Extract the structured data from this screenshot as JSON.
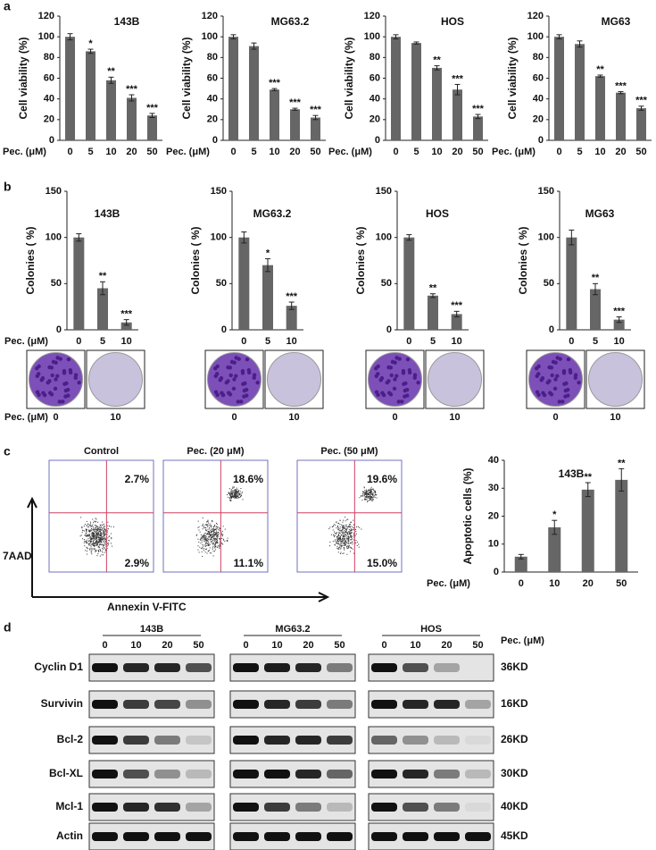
{
  "panels": [
    "a",
    "b",
    "c",
    "d"
  ],
  "chart_data": [
    {
      "type": "bar",
      "title": "143B",
      "ylabel": "Cell viability (%)",
      "xlabel": "Pec. (μM)",
      "categories": [
        "0",
        "5",
        "10",
        "20",
        "50"
      ],
      "values": [
        100,
        86,
        58,
        41,
        24
      ],
      "errors": [
        3,
        2,
        3,
        3,
        2
      ],
      "significance": [
        null,
        "*",
        "**",
        "***",
        "***"
      ],
      "color": "#666666",
      "ylim": [
        0,
        120
      ],
      "yticks": [
        0,
        20,
        40,
        60,
        80,
        100,
        120
      ]
    },
    {
      "type": "bar",
      "title": "MG63.2",
      "ylabel": "Cell viability (%)",
      "xlabel": "Pec. (μM)",
      "categories": [
        "0",
        "5",
        "10",
        "20",
        "50"
      ],
      "values": [
        100,
        91,
        49,
        30,
        22
      ],
      "errors": [
        2,
        3,
        1,
        1,
        2
      ],
      "significance": [
        null,
        null,
        "***",
        "***",
        "***"
      ],
      "color": "#666666",
      "ylim": [
        0,
        120
      ],
      "yticks": [
        0,
        20,
        40,
        60,
        80,
        100,
        120
      ]
    },
    {
      "type": "bar",
      "title": "HOS",
      "ylabel": "Cell viability (%)",
      "xlabel": "Pec. (μM)",
      "categories": [
        "0",
        "5",
        "10",
        "20",
        "50"
      ],
      "values": [
        100,
        94,
        70,
        49,
        23
      ],
      "errors": [
        2,
        1,
        2,
        5,
        2
      ],
      "significance": [
        null,
        null,
        "**",
        "***",
        "***"
      ],
      "color": "#666666",
      "ylim": [
        0,
        120
      ],
      "yticks": [
        0,
        20,
        40,
        60,
        80,
        100,
        120
      ]
    },
    {
      "type": "bar",
      "title": "MG63",
      "ylabel": "Cell viability (%)",
      "xlabel": "Pec. (μM)",
      "categories": [
        "0",
        "5",
        "10",
        "20",
        "50"
      ],
      "values": [
        100,
        93,
        62,
        46,
        31
      ],
      "errors": [
        2,
        3,
        1,
        1,
        2
      ],
      "significance": [
        null,
        null,
        "**",
        "***",
        "***"
      ],
      "color": "#666666",
      "ylim": [
        0,
        120
      ],
      "yticks": [
        0,
        20,
        40,
        60,
        80,
        100,
        120
      ]
    },
    {
      "type": "bar",
      "title": "143B",
      "ylabel": "Colonies ( %)",
      "xlabel": "Pec. (μM)",
      "categories": [
        "0",
        "5",
        "10"
      ],
      "values": [
        100,
        45,
        8
      ],
      "errors": [
        4,
        7,
        3
      ],
      "significance": [
        null,
        "**",
        "***"
      ],
      "color": "#666666",
      "ylim": [
        0,
        150
      ],
      "yticks": [
        0,
        50,
        100,
        150
      ]
    },
    {
      "type": "bar",
      "title": "MG63.2",
      "ylabel": "Colonies ( %)",
      "categories": [
        "0",
        "5",
        "10"
      ],
      "values": [
        100,
        70,
        26
      ],
      "errors": [
        6,
        7,
        4
      ],
      "significance": [
        null,
        "*",
        "***"
      ],
      "color": "#666666",
      "ylim": [
        0,
        150
      ],
      "yticks": [
        0,
        50,
        100,
        150
      ]
    },
    {
      "type": "bar",
      "title": "HOS",
      "ylabel": "Colonies ( %)",
      "categories": [
        "0",
        "5",
        "10"
      ],
      "values": [
        100,
        37,
        17
      ],
      "errors": [
        3,
        2,
        3
      ],
      "significance": [
        null,
        "**",
        "***"
      ],
      "color": "#666666",
      "ylim": [
        0,
        150
      ],
      "yticks": [
        0,
        50,
        100,
        150
      ]
    },
    {
      "type": "bar",
      "title": "MG63",
      "ylabel": "Colonies ( %)",
      "categories": [
        "0",
        "5",
        "10"
      ],
      "values": [
        100,
        44,
        11
      ],
      "errors": [
        8,
        6,
        3
      ],
      "significance": [
        null,
        "**",
        "***"
      ],
      "color": "#666666",
      "ylim": [
        0,
        150
      ],
      "yticks": [
        0,
        50,
        100,
        150
      ]
    },
    {
      "type": "bar",
      "title": "143B",
      "ylabel": "Apoptotic cells (%)",
      "xlabel": "Pec. (μM)",
      "categories": [
        "0",
        "10",
        "20",
        "50"
      ],
      "values": [
        5.5,
        16,
        29.5,
        33
      ],
      "errors": [
        0.8,
        2.5,
        2.5,
        4
      ],
      "significance": [
        null,
        "*",
        "**",
        "**"
      ],
      "color": "#666666",
      "ylim": [
        0,
        40
      ],
      "yticks": [
        0,
        10,
        20,
        30,
        40
      ]
    }
  ],
  "colony_assay": {
    "xlabel": "Pec. (μM)",
    "labels": [
      "0",
      "10"
    ]
  },
  "flow_cytometry": {
    "ylabel": "7AAD",
    "xlabel": "Annexin V-FITC",
    "plots": [
      {
        "title": "Control",
        "upper_right": "2.7%",
        "lower_right": "2.9%"
      },
      {
        "title": "Pec. (20 μM)",
        "upper_right": "18.6%",
        "lower_right": "11.1%"
      },
      {
        "title": "Pec. (50 μM)",
        "upper_right": "19.6%",
        "lower_right": "15.0%"
      }
    ]
  },
  "western_blot": {
    "xlabel": "Pec. (μM)",
    "concentrations": [
      "0",
      "10",
      "20",
      "50"
    ],
    "groups": [
      "143B",
      "MG63.2",
      "HOS"
    ],
    "proteins": [
      {
        "name": "Cyclin D1",
        "size": "36KD"
      },
      {
        "name": "Survivin",
        "size": "16KD"
      },
      {
        "name": "Bcl-2",
        "size": "26KD"
      },
      {
        "name": "Bcl-XL",
        "size": "30KD"
      },
      {
        "name": "Mcl-1",
        "size": "40KD"
      },
      {
        "name": "Actin",
        "size": "45KD"
      }
    ]
  }
}
